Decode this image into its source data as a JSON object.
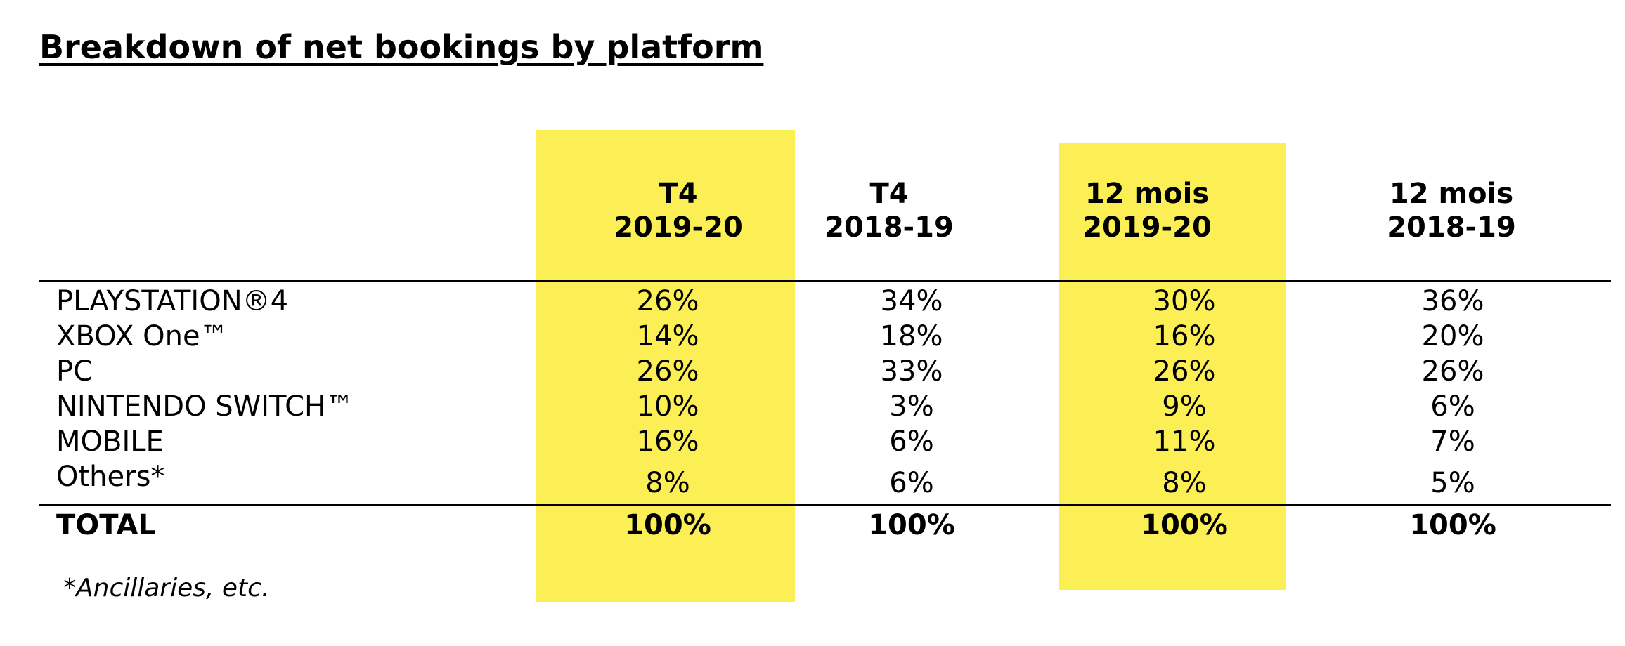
{
  "title": "Breakdown of net bookings by platform",
  "highlight_color": "#fbef55",
  "columns": [
    {
      "line1": "T4",
      "line2": "2019-20"
    },
    {
      "line1": "T4",
      "line2": "2018-19"
    },
    {
      "line1": "12 mois",
      "line2": "2019-20"
    },
    {
      "line1": "12 mois",
      "line2": "2018-19"
    }
  ],
  "rows": [
    {
      "label": "PLAYSTATION®4",
      "values": [
        "26%",
        "34%",
        "30%",
        "36%"
      ]
    },
    {
      "label": "XBOX One™",
      "values": [
        "14%",
        "18%",
        "16%",
        "20%"
      ]
    },
    {
      "label": "PC",
      "values": [
        "26%",
        "33%",
        "26%",
        "26%"
      ]
    },
    {
      "label": "NINTENDO SWITCH™",
      "values": [
        "10%",
        "3%",
        "9%",
        "6%"
      ]
    },
    {
      "label": "MOBILE",
      "values": [
        "16%",
        "6%",
        "11%",
        "7%"
      ]
    },
    {
      "label": "Others*",
      "values": [
        "8%",
        "6%",
        "8%",
        "5%"
      ]
    }
  ],
  "total": {
    "label": "TOTAL",
    "values": [
      "100%",
      "100%",
      "100%",
      "100%"
    ]
  },
  "footnote": "*Ancillaries, etc."
}
